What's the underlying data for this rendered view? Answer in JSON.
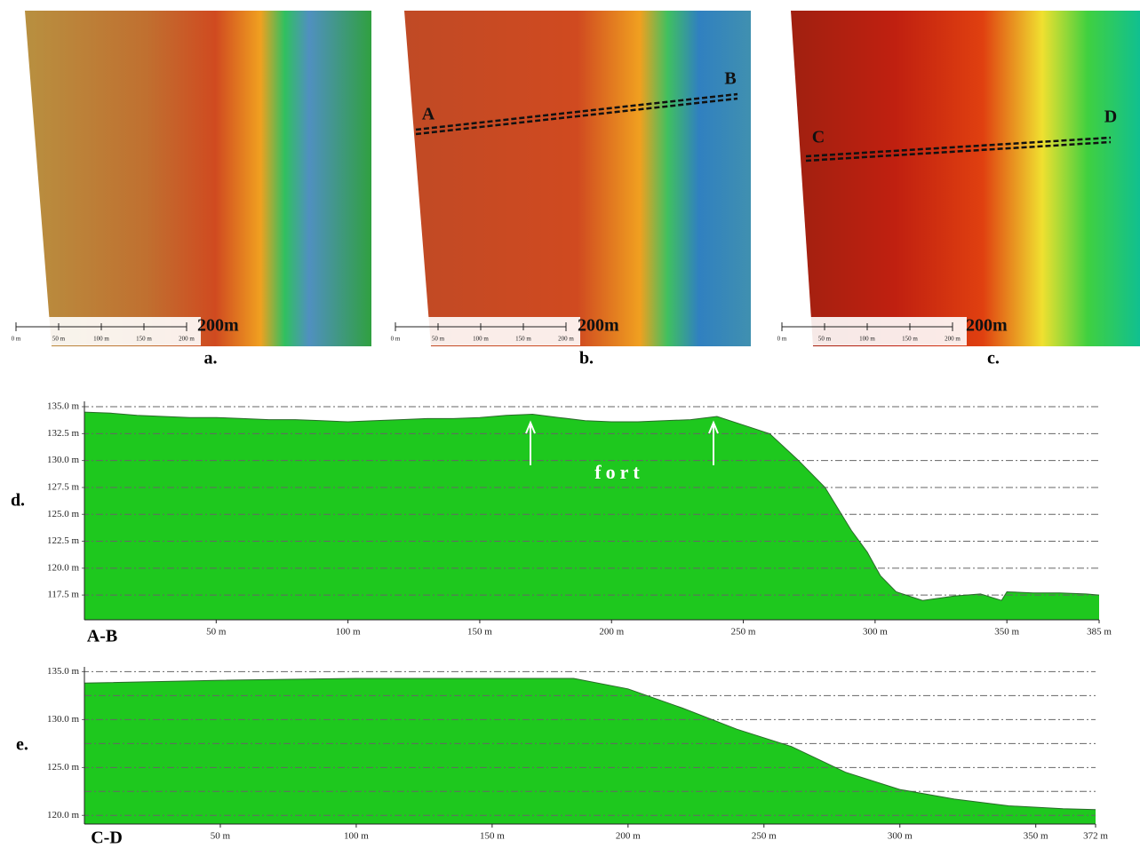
{
  "maps": [
    {
      "label": "a.",
      "scale_labels": [
        "0 m",
        "50 m",
        "100 m",
        "150 m",
        "200 m"
      ],
      "scale_title": "200m"
    },
    {
      "label": "b.",
      "scale_labels": [
        "0 m",
        "50 m",
        "100 m",
        "150 m",
        "200 m"
      ],
      "scale_title": "200m",
      "points": [
        "A",
        "B"
      ]
    },
    {
      "label": "c.",
      "scale_labels": [
        "0 m",
        "50 m",
        "100 m",
        "150 m",
        "200 m"
      ],
      "scale_title": "200m",
      "points": [
        "C",
        "D"
      ]
    }
  ],
  "chart_data": [
    {
      "type": "area",
      "title": "d.",
      "profile_label": "A-B",
      "annotation": "fort",
      "color": "#1ec81e",
      "grid": true,
      "x": [
        0,
        10,
        20,
        30,
        40,
        50,
        60,
        70,
        80,
        90,
        100,
        110,
        120,
        130,
        140,
        150,
        160,
        170,
        180,
        190,
        200,
        210,
        220,
        230,
        240,
        250,
        260,
        271,
        281,
        291,
        297,
        302,
        308,
        318,
        330,
        340,
        348,
        350,
        360,
        370,
        380,
        385
      ],
      "values": [
        134.5,
        134.4,
        134.2,
        134.1,
        134.0,
        134.0,
        133.9,
        133.8,
        133.8,
        133.7,
        133.6,
        133.7,
        133.8,
        133.9,
        133.9,
        134.0,
        134.2,
        134.3,
        134.0,
        133.7,
        133.6,
        133.6,
        133.7,
        133.8,
        134.1,
        133.3,
        132.5,
        130.0,
        127.5,
        123.5,
        121.5,
        119.3,
        117.8,
        117.0,
        117.4,
        117.6,
        117.0,
        117.8,
        117.7,
        117.7,
        117.6,
        117.5
      ],
      "xlim": [
        0,
        385
      ],
      "ylim": [
        115.2,
        135.5
      ],
      "xticks": [
        {
          "value": 50,
          "label": "50 m"
        },
        {
          "value": 100,
          "label": "100 m"
        },
        {
          "value": 150,
          "label": "150 m"
        },
        {
          "value": 200,
          "label": "200 m"
        },
        {
          "value": 250,
          "label": "250 m"
        },
        {
          "value": 300,
          "label": "300 m"
        },
        {
          "value": 350,
          "label": "350 m"
        },
        {
          "value": 385,
          "label": "385 m"
        }
      ],
      "yticks": [
        {
          "value": 135.0,
          "label": "135.0 m"
        },
        {
          "value": 132.5,
          "label": "132.5 m"
        },
        {
          "value": 130.0,
          "label": "130.0 m"
        },
        {
          "value": 127.5,
          "label": "127.5 m"
        },
        {
          "value": 125.0,
          "label": "125.0 m"
        },
        {
          "value": 122.5,
          "label": "122.5 m"
        },
        {
          "value": 120.0,
          "label": "120.0 m"
        },
        {
          "value": 117.5,
          "label": "117.5 m"
        }
      ]
    },
    {
      "type": "area",
      "title": "e.",
      "profile_label": "C-D",
      "color": "#1ec81e",
      "grid": true,
      "x": [
        0,
        50,
        100,
        150,
        180,
        200,
        220,
        240,
        260,
        280,
        300,
        320,
        340,
        360,
        372
      ],
      "values": [
        133.8,
        134.1,
        134.3,
        134.3,
        134.3,
        133.2,
        131.2,
        129.0,
        127.2,
        124.5,
        122.7,
        121.7,
        121.0,
        120.7,
        120.6
      ],
      "xlim": [
        0,
        372
      ],
      "ylim": [
        119.1,
        135.5
      ],
      "xticks": [
        {
          "value": 50,
          "label": "50 m"
        },
        {
          "value": 100,
          "label": "100 m"
        },
        {
          "value": 150,
          "label": "150 m"
        },
        {
          "value": 200,
          "label": "200 m"
        },
        {
          "value": 250,
          "label": "250 m"
        },
        {
          "value": 300,
          "label": "300 m"
        },
        {
          "value": 350,
          "label": "350 m"
        },
        {
          "value": 372,
          "label": "372 m"
        }
      ],
      "yticks": [
        {
          "value": 135.0,
          "label": "135.0 m"
        },
        {
          "value": 130.0,
          "label": "130.0 m"
        },
        {
          "value": 125.0,
          "label": "125.0 m"
        },
        {
          "value": 120.0,
          "label": "120.0 m"
        }
      ],
      "minor_yticks": [
        132.5,
        127.5,
        122.5
      ]
    }
  ]
}
